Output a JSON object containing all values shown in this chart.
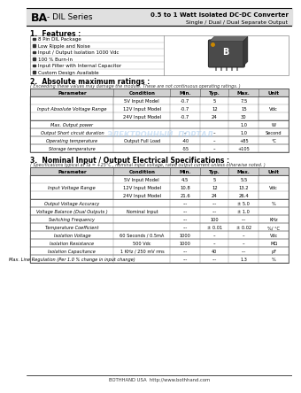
{
  "title_ba": "BA",
  "title_rest": " - DIL Series",
  "title_right1": "0.5 to 1 Watt Isolated DC-DC Converter",
  "title_right2": "Single / Dual / Dual Separate Output",
  "s1_title": "1.  Features :",
  "features": [
    "8 Pin DIL Package",
    "Low Ripple and Noise",
    "Input / Output Isolation 1000 Vdc",
    "100 % Burn-In",
    "Input Filter with Internal Capacitor",
    "Custom Design Available"
  ],
  "s2_title": "2.  Absolute maximum ratings :",
  "s2_note": "( Exceeding these values may damage the module. These are not continuous operating ratings. )",
  "abs_headers": [
    "Parameter",
    "Condition",
    "Min.",
    "Typ.",
    "Max.",
    "Unit"
  ],
  "abs_rows": [
    [
      "Input Absolute Voltage Range",
      "5V Input Model",
      "-0.7",
      "5",
      "7.5",
      "Vdc"
    ],
    [
      "",
      "12V Input Model",
      "-0.7",
      "12",
      "15",
      ""
    ],
    [
      "",
      "24V Input Model",
      "-0.7",
      "24",
      "30",
      ""
    ],
    [
      "Max. Output power",
      "",
      "",
      "",
      "1.0",
      "W"
    ],
    [
      "Output Short circuit duration",
      "",
      "--",
      "--",
      "1.0",
      "Second"
    ],
    [
      "Operating temperature",
      "Output Full Load",
      "-40",
      "--",
      "+85",
      "°C"
    ],
    [
      "Storage temperature",
      "",
      "-55",
      "--",
      "+105",
      ""
    ]
  ],
  "s3_title": "3.  Nominal Input / Output Electrical Specifications :",
  "s3_note": "( Specifications typical at Ta = +25°C , nominal input voltage, rated output current unless otherwise noted. )",
  "elec_headers": [
    "Parameter",
    "Condition",
    "Min.",
    "Typ.",
    "Max.",
    "Unit"
  ],
  "elec_rows": [
    [
      "Input Voltage Range",
      "5V Input Model",
      "4.5",
      "5",
      "5.5",
      "Vdc"
    ],
    [
      "",
      "12V Input Model",
      "10.8",
      "12",
      "13.2",
      ""
    ],
    [
      "",
      "24V Input Model",
      "21.6",
      "24",
      "26.4",
      ""
    ],
    [
      "Output Voltage Accuracy",
      "",
      "---",
      "---",
      "± 5.0",
      "%"
    ],
    [
      "Voltage Balance (Dual Outputs )",
      "Nominal Input",
      "---",
      "---",
      "± 1.0",
      ""
    ],
    [
      "Switching Frequency",
      "",
      "---",
      "100",
      "---",
      "KHz"
    ],
    [
      "Temperature Coefficient",
      "",
      "---",
      "± 0.01",
      "± 0.02",
      "%/ °C"
    ],
    [
      "Isolation Voltage",
      "60 Seconds / 0.5mA",
      "1000",
      "--",
      "--",
      "Vdc"
    ],
    [
      "Isolation Resistance",
      "500 Vdc",
      "1000",
      "--",
      "--",
      "MΩ"
    ],
    [
      "Isolation Capacitance",
      "1 KHz / 250 mV rms",
      "---",
      "40",
      "---",
      "pF"
    ],
    [
      "Max. Line Regulation (Per 1.0 % change in input change)",
      "",
      "---",
      "---",
      "1.3",
      "%"
    ]
  ],
  "watermark": "ЭЛЕКТРОННЫЙ  ПОРТАЛ",
  "footer": "BOTHHAND USA  http://www.bothhand.com"
}
